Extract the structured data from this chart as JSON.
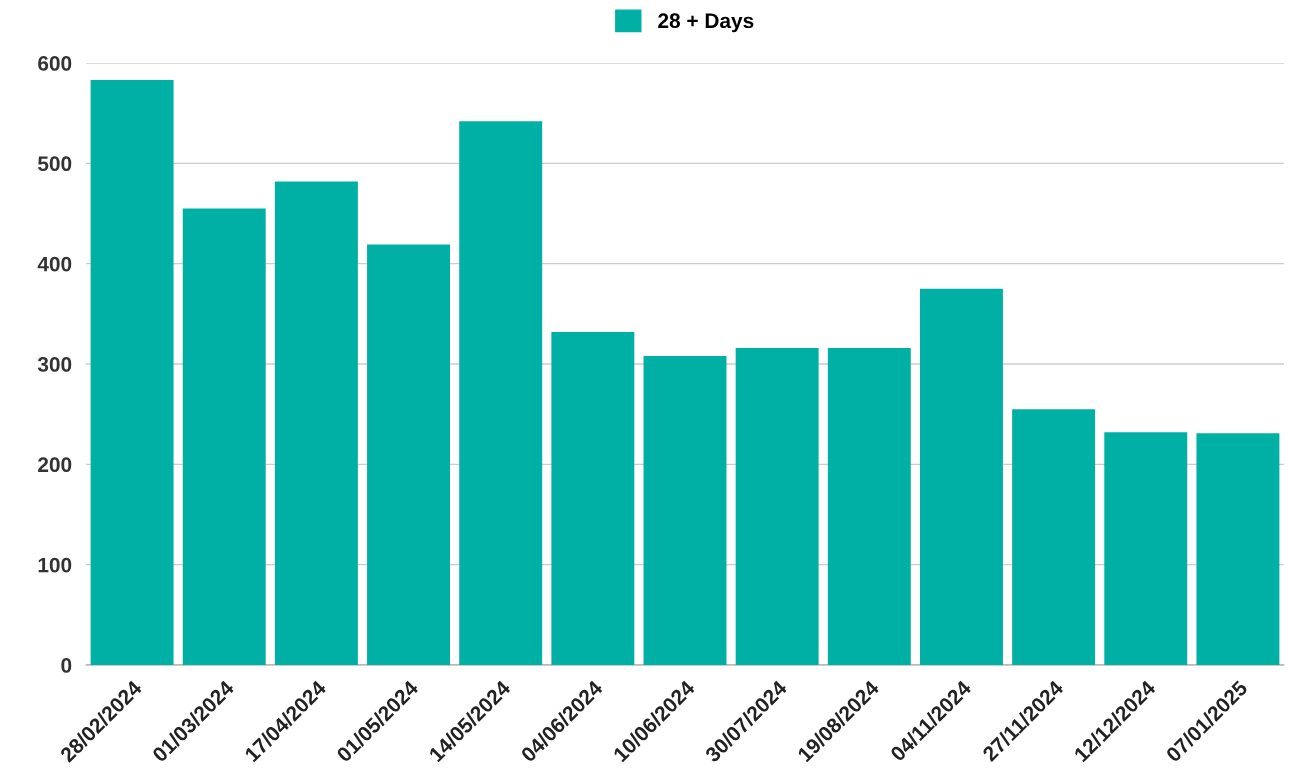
{
  "chart_data": {
    "type": "bar",
    "categories": [
      "28/02/2024",
      "01/03/2024",
      "17/04/2024",
      "01/05/2024",
      "14/05/2024",
      "04/06/2024",
      "10/06/2024",
      "30/07/2024",
      "19/08/2024",
      "04/11/2024",
      "27/11/2024",
      "12/12/2024",
      "07/01/2025"
    ],
    "series": [
      {
        "name": "28 + Days",
        "color": "#00b0a4",
        "values": [
          583,
          455,
          482,
          419,
          542,
          332,
          308,
          316,
          316,
          375,
          255,
          232,
          231
        ]
      }
    ],
    "ylim": [
      0,
      600
    ],
    "yticks": [
      0,
      100,
      200,
      300,
      400,
      500,
      600
    ],
    "grid": "y",
    "legend": "top"
  }
}
